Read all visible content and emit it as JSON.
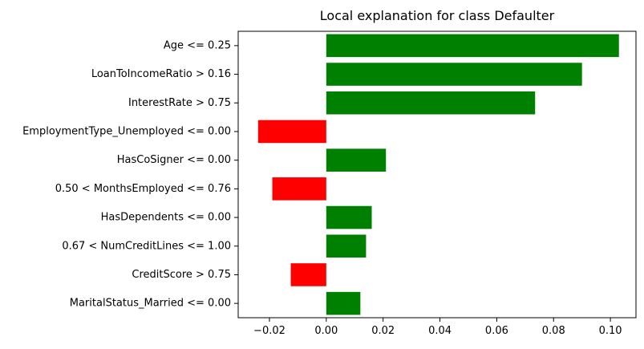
{
  "chart_data": {
    "type": "bar",
    "orientation": "horizontal",
    "title": "Local explanation for class Defaulter",
    "xlabel": "",
    "ylabel": "",
    "categories": [
      "Age <= 0.25",
      "LoanToIncomeRatio > 0.16",
      "InterestRate > 0.75",
      "EmploymentType_Unemployed <= 0.00",
      "HasCoSigner <= 0.00",
      "0.50 < MonthsEmployed <= 0.76",
      "HasDependents <= 0.00",
      "0.67 < NumCreditLines <= 1.00",
      "CreditScore > 0.75",
      "MaritalStatus_Married <= 0.00"
    ],
    "values": [
      0.103,
      0.09,
      0.0735,
      -0.024,
      0.021,
      -0.019,
      0.016,
      0.014,
      -0.0125,
      0.012
    ],
    "xlim": [
      -0.031,
      0.109
    ],
    "xticks": [
      -0.02,
      0.0,
      0.02,
      0.04,
      0.06,
      0.08,
      0.1
    ],
    "xtick_labels": [
      "−0.02",
      "0.00",
      "0.02",
      "0.04",
      "0.06",
      "0.08",
      "0.10"
    ],
    "colors": {
      "positive": "#008000",
      "negative": "#ff0000"
    },
    "grid": false,
    "legend": "none"
  }
}
